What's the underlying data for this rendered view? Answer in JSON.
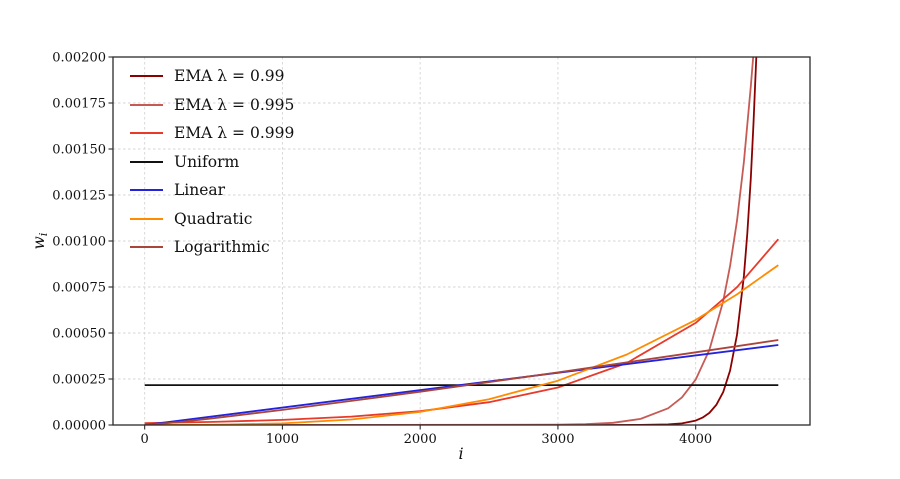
{
  "chart_data": {
    "type": "line",
    "title": "",
    "xlabel": "i",
    "ylabel_base": "w",
    "ylabel_sub": "i",
    "xlim": [
      -230,
      4830
    ],
    "ylim": [
      0,
      0.002
    ],
    "grid": true,
    "grid_style": "dashed",
    "legend_position": "upper left",
    "x_ticks": {
      "values": [
        0,
        1000,
        2000,
        3000,
        4000
      ],
      "labels": [
        "0",
        "1000",
        "2000",
        "3000",
        "4000"
      ]
    },
    "y_ticks": {
      "values": [
        0,
        0.00025,
        0.0005,
        0.00075,
        0.001,
        0.00125,
        0.0015,
        0.00175,
        0.002
      ],
      "labels": [
        "0.00000",
        "0.00025",
        "0.00050",
        "0.00075",
        "0.00100",
        "0.00125",
        "0.00150",
        "0.00175",
        "0.00200"
      ]
    },
    "series": [
      {
        "name": "EMA λ = 0.99",
        "color": "#8b0000",
        "points": [
          [
            0,
            0
          ],
          [
            2500,
            0
          ],
          [
            3000,
            1e-07
          ],
          [
            3400,
            1e-07
          ],
          [
            3600,
            4e-07
          ],
          [
            3800,
            3.2e-06
          ],
          [
            3900,
            8.8e-06
          ],
          [
            4000,
            2.4e-05
          ],
          [
            4050,
            4e-05
          ],
          [
            4100,
            6.6e-05
          ],
          [
            4150,
            0.000109
          ],
          [
            4200,
            0.000179
          ],
          [
            4250,
            0.000296
          ],
          [
            4300,
            0.00049
          ],
          [
            4350,
            0.00081
          ],
          [
            4375,
            0.00104
          ],
          [
            4400,
            0.00134
          ],
          [
            4420,
            0.00164
          ],
          [
            4440,
            0.002
          ],
          [
            4455,
            0.00222
          ]
        ]
      },
      {
        "name": "EMA λ = 0.995",
        "color": "#c65b55",
        "points": [
          [
            0,
            0
          ],
          [
            2600,
            1.1e-06
          ],
          [
            3000,
            1.7e-06
          ],
          [
            3200,
            4.5e-06
          ],
          [
            3400,
            1.2e-05
          ],
          [
            3600,
            3.3e-05
          ],
          [
            3800,
            9.1e-05
          ],
          [
            3900,
            0.00015
          ],
          [
            4000,
            0.000247
          ],
          [
            4100,
            0.000408
          ],
          [
            4200,
            0.000673
          ],
          [
            4250,
            0.000865
          ],
          [
            4300,
            0.00111
          ],
          [
            4350,
            0.00143
          ],
          [
            4400,
            0.00184
          ],
          [
            4435,
            0.00216
          ]
        ]
      },
      {
        "name": "EMA λ = 0.999",
        "color": "#e83a2a",
        "points": [
          [
            0,
            1.01e-05
          ],
          [
            500,
            1.67e-05
          ],
          [
            1000,
            2.76e-05
          ],
          [
            1500,
            4.55e-05
          ],
          [
            2000,
            7.51e-05
          ],
          [
            2500,
            0.000124
          ],
          [
            3000,
            0.000204
          ],
          [
            3500,
            0.000337
          ],
          [
            4000,
            0.000555
          ],
          [
            4300,
            0.000749
          ],
          [
            4600,
            0.00101
          ]
        ]
      },
      {
        "name": "Uniform",
        "color": "#111111",
        "points": [
          [
            0,
            0.000217
          ],
          [
            4600,
            0.000217
          ]
        ]
      },
      {
        "name": "Linear",
        "color": "#2323dd",
        "points": [
          [
            0,
            0
          ],
          [
            2300,
            0.000218
          ],
          [
            4600,
            0.000435
          ]
        ]
      },
      {
        "name": "Quadratic",
        "color": "#ff8c00",
        "points": [
          [
            0,
            0
          ],
          [
            500,
            1.1e-06
          ],
          [
            1000,
            8.9e-06
          ],
          [
            1500,
            3e-05
          ],
          [
            2000,
            7.1e-05
          ],
          [
            2500,
            0.00014
          ],
          [
            3000,
            0.000241
          ],
          [
            3500,
            0.000383
          ],
          [
            4000,
            0.000571
          ],
          [
            4300,
            0.00071
          ],
          [
            4600,
            0.000869
          ]
        ]
      },
      {
        "name": "Logarithmic",
        "color": "#aa453c",
        "points": [
          [
            0,
            0
          ],
          [
            250,
            1.6e-05
          ],
          [
            500,
            3.7e-05
          ],
          [
            1000,
            8.2e-05
          ],
          [
            1500,
            0.000131
          ],
          [
            2000,
            0.000181
          ],
          [
            2500,
            0.000233
          ],
          [
            3000,
            0.000286
          ],
          [
            3500,
            0.00034
          ],
          [
            4000,
            0.000395
          ],
          [
            4600,
            0.000462
          ]
        ]
      }
    ]
  }
}
